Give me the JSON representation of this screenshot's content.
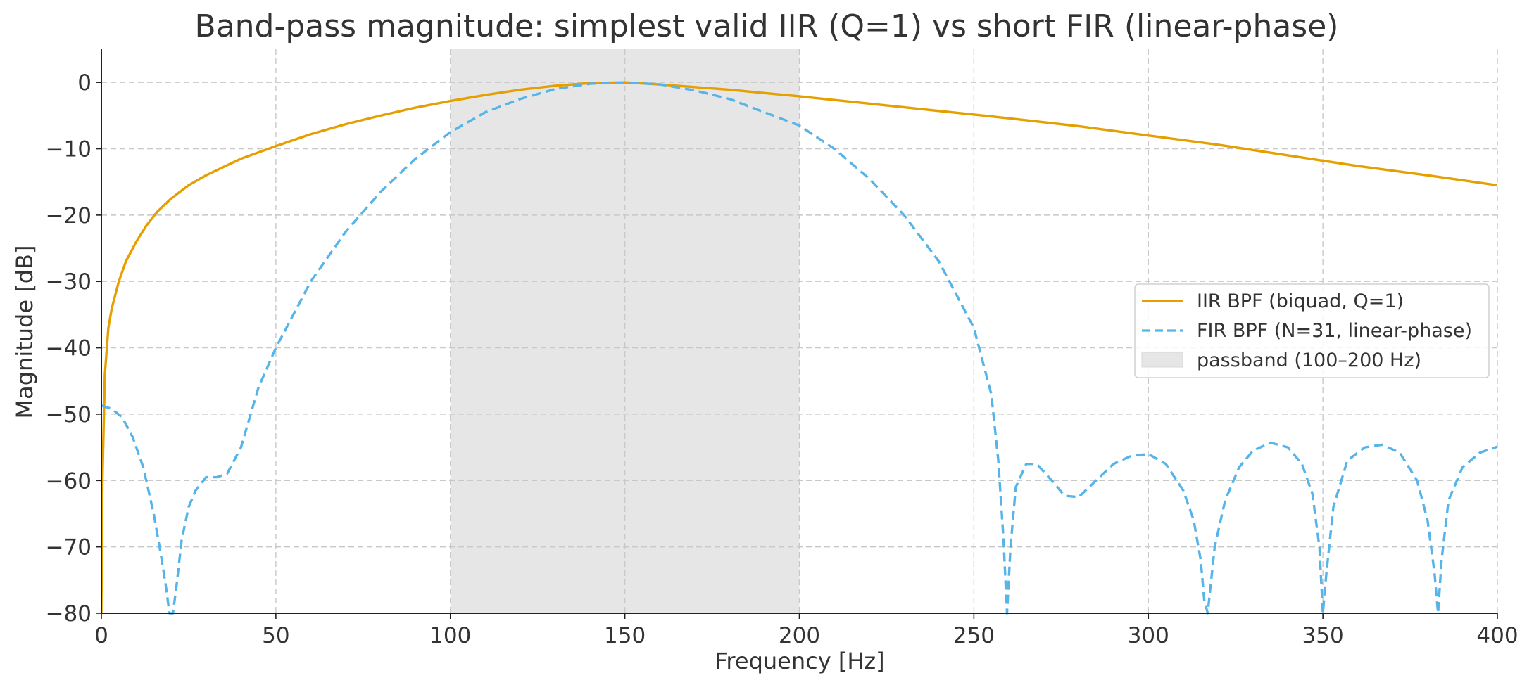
{
  "chart_data": {
    "type": "line",
    "title": "Band-pass magnitude: simplest valid IIR (Q=1) vs short FIR (linear-phase)",
    "xlabel": "Frequency [Hz]",
    "ylabel": "Magnitude [dB]",
    "xlim": [
      0,
      400
    ],
    "ylim": [
      -80,
      5
    ],
    "xticks": [
      0,
      50,
      100,
      150,
      200,
      250,
      300,
      350,
      400
    ],
    "yticks": [
      0,
      -10,
      -20,
      -30,
      -40,
      -50,
      -60,
      -70,
      -80
    ],
    "xtick_labels": [
      "0",
      "50",
      "100",
      "150",
      "200",
      "250",
      "300",
      "350",
      "400"
    ],
    "ytick_labels": [
      "0",
      "−10",
      "−20",
      "−30",
      "−40",
      "−50",
      "−60",
      "−70",
      "−80"
    ],
    "grid": true,
    "legend_position": "center-right",
    "passband": {
      "name": "passband (100–200 Hz)",
      "x0": 100,
      "x1": 200,
      "color": "#e6e6e6"
    },
    "series": [
      {
        "name": "IIR BPF (biquad, Q=1)",
        "color": "#e69f00",
        "style": "solid",
        "x": [
          0,
          0.3,
          1,
          2,
          3,
          5,
          7,
          10,
          13,
          16,
          20,
          25,
          30,
          40,
          50,
          60,
          70,
          80,
          90,
          100,
          110,
          120,
          130,
          140,
          150,
          160,
          170,
          180,
          190,
          200,
          220,
          240,
          260,
          280,
          300,
          320,
          340,
          360,
          380,
          400
        ],
        "y": [
          -80,
          -60,
          -44,
          -37,
          -34,
          -30,
          -27,
          -24,
          -21.5,
          -19.5,
          -17.5,
          -15.5,
          -14,
          -11.5,
          -9.6,
          -7.8,
          -6.3,
          -5,
          -3.8,
          -2.8,
          -1.9,
          -1.1,
          -0.5,
          -0.1,
          0,
          -0.3,
          -0.7,
          -1.1,
          -1.6,
          -2.1,
          -3.2,
          -4.3,
          -5.4,
          -6.6,
          -8,
          -9.4,
          -11,
          -12.6,
          -14,
          -15.5
        ]
      },
      {
        "name": "FIR BPF (N=31, linear-phase)",
        "color": "#56b4e9",
        "style": "dashed",
        "x": [
          0,
          3,
          6,
          9,
          12,
          15,
          17,
          18.5,
          19.5,
          20.5,
          21.5,
          23,
          25,
          27,
          30,
          33,
          36,
          40,
          45,
          50,
          60,
          70,
          80,
          90,
          100,
          110,
          120,
          130,
          140,
          150,
          160,
          170,
          180,
          190,
          200,
          210,
          220,
          230,
          240,
          250,
          255,
          257,
          258.5,
          259.5,
          260.5,
          262,
          265,
          268,
          272,
          276,
          280,
          285,
          290,
          295,
          300,
          305,
          310,
          313,
          315,
          316,
          317,
          319,
          322,
          326,
          330,
          335,
          340,
          344,
          347,
          349,
          350,
          351,
          353,
          357,
          362,
          367,
          372,
          377,
          380,
          382,
          383,
          384,
          386,
          390,
          395,
          400
        ],
        "y": [
          -48.7,
          -49.2,
          -50.5,
          -53.5,
          -58,
          -65,
          -71,
          -76,
          -80,
          -80,
          -76,
          -69,
          -64,
          -61.5,
          -59.5,
          -59.5,
          -59,
          -55,
          -46,
          -40,
          -30,
          -22.5,
          -16.5,
          -11.5,
          -7.5,
          -4.5,
          -2.5,
          -1,
          -0.2,
          0,
          -0.3,
          -1.2,
          -2.5,
          -4.5,
          -6.5,
          -10,
          -14.5,
          -20,
          -27,
          -37,
          -47,
          -57,
          -69,
          -80,
          -70,
          -61,
          -57.5,
          -57.5,
          -59.8,
          -62.3,
          -62.5,
          -60,
          -57.5,
          -56.3,
          -56,
          -57.5,
          -61.5,
          -66,
          -72,
          -78,
          -80,
          -70,
          -63,
          -58,
          -55.5,
          -54.3,
          -55,
          -57.5,
          -62,
          -70,
          -80,
          -74,
          -64,
          -57,
          -55,
          -54.6,
          -55.8,
          -60,
          -66,
          -74,
          -80,
          -72,
          -63,
          -58,
          -55.8,
          -54.9
        ]
      }
    ]
  }
}
